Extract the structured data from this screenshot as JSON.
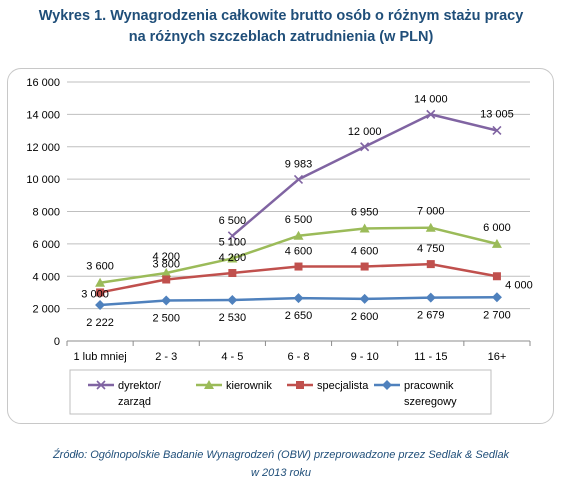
{
  "title": {
    "line1": "Wykres 1. Wynagrodzenia całkowite brutto osób o różnym stażu pracy",
    "line2": "na różnych szczeblach zatrudnienia (w PLN)"
  },
  "source": {
    "line1": "Źródło: Ogólnopolskie Badanie Wynagrodzeń (OBW) przeprowadzone przez Sedlak & Sedlak",
    "line2": "w 2013 roku"
  },
  "chart_data": {
    "type": "line",
    "title": "Wykres 1. Wynagrodzenia całkowite brutto osób o różnym stażu pracy na różnych szczeblach zatrudnienia (w PLN)",
    "xlabel": "",
    "ylabel": "",
    "ylim": [
      0,
      16000
    ],
    "yticks": [
      0,
      2000,
      4000,
      6000,
      8000,
      10000,
      12000,
      14000,
      16000
    ],
    "ytick_labels": [
      "0",
      "2 000",
      "4 000",
      "6 000",
      "8 000",
      "10 000",
      "12 000",
      "14 000",
      "16 000"
    ],
    "grid": "horizontal",
    "legend_position": "bottom",
    "categories": [
      "1 lub mniej",
      "2 - 3",
      "4 - 5",
      "6 - 8",
      "9 - 10",
      "11 - 15",
      "16+"
    ],
    "series": [
      {
        "name": "dyrektor/ zarząd",
        "legend_lines": [
          "dyrektor/",
          "zarząd"
        ],
        "color": "#8064a2",
        "marker": "x",
        "values": [
          null,
          null,
          6500,
          9983,
          12000,
          14000,
          13005
        ],
        "labels": [
          "",
          "",
          "6 500",
          "9 983",
          "12 000",
          "14 000",
          "13 005"
        ]
      },
      {
        "name": "kierownik",
        "legend_lines": [
          "kierownik"
        ],
        "color": "#9bbb59",
        "marker": "triangle",
        "values": [
          3600,
          4200,
          5100,
          6500,
          6950,
          7000,
          6000
        ],
        "labels": [
          "3 600",
          "4 200",
          "5 100",
          "6 500",
          "6 950",
          "7 000",
          "6 000"
        ]
      },
      {
        "name": "specjalista",
        "legend_lines": [
          "specjalista"
        ],
        "color": "#c0504d",
        "marker": "square",
        "values": [
          3000,
          3800,
          4200,
          4600,
          4600,
          4750,
          4000
        ],
        "labels": [
          "3 000",
          "3 800",
          "4 200",
          "4 600",
          "4 600",
          "4 750",
          "4 000"
        ]
      },
      {
        "name": "pracownik szeregowy",
        "legend_lines": [
          "pracownik",
          "szeregowy"
        ],
        "color": "#4f81bd",
        "marker": "diamond",
        "values": [
          2222,
          2500,
          2530,
          2650,
          2600,
          2679,
          2700
        ],
        "labels": [
          "2 222",
          "2 500",
          "2 530",
          "2 650",
          "2 600",
          "2 679",
          "2 700"
        ]
      }
    ]
  }
}
